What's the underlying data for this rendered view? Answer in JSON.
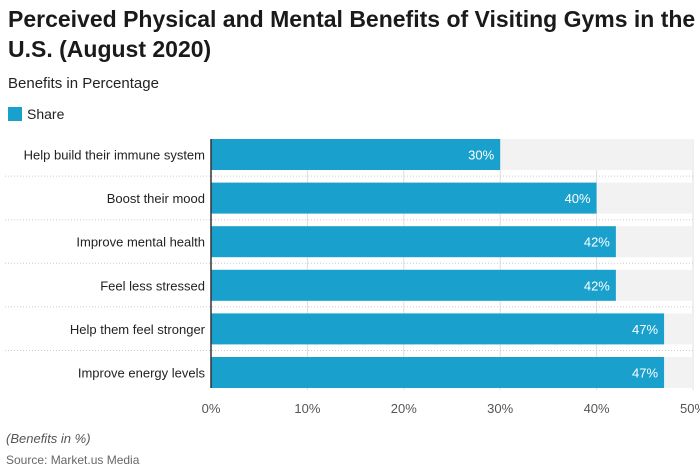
{
  "title": "Perceived Physical and Mental Benefits of Visiting Gyms in the U.S. (August 2020)",
  "subtitle": "Benefits in Percentage",
  "note": "(Benefits in %)",
  "source": "Source: Market.us Media",
  "colors": {
    "bar": "#1aa0cc",
    "track": "#f2f2f2"
  },
  "chart_data": {
    "type": "bar",
    "orientation": "horizontal",
    "categories": [
      "Help build their immune system",
      "Boost their mood",
      "Improve mental health",
      "Feel less stressed",
      "Help them feel stronger",
      "Improve energy levels"
    ],
    "series": [
      {
        "name": "Share",
        "values": [
          30,
          40,
          42,
          42,
          47,
          47
        ]
      }
    ],
    "data_labels": [
      "30%",
      "40%",
      "42%",
      "42%",
      "47%",
      "47%"
    ],
    "xlim": [
      0,
      50
    ],
    "xticks": [
      "0%",
      "10%",
      "20%",
      "30%",
      "40%",
      "50%"
    ],
    "legend": "top-left",
    "grid": true
  }
}
